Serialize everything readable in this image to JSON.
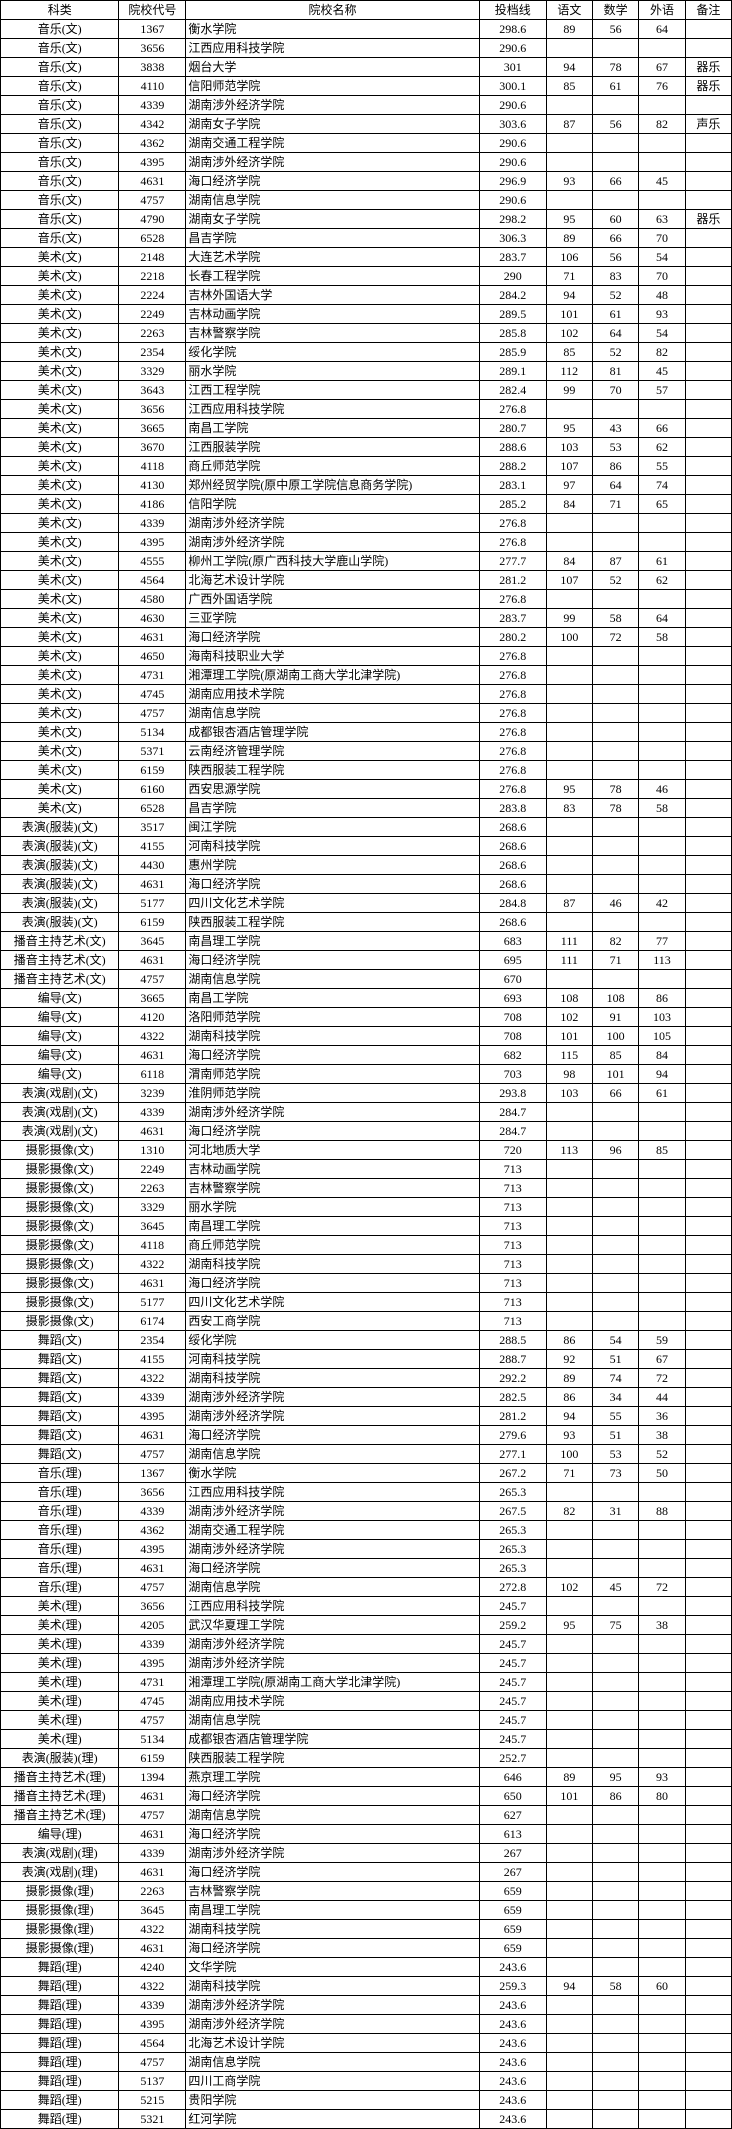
{
  "headers": {
    "category": "科类",
    "code": "院校代号",
    "name": "院校名称",
    "score": "投档线",
    "chinese": "语文",
    "math": "数学",
    "foreign": "外语",
    "note": "备注"
  },
  "rows": [
    {
      "cat": "音乐(文)",
      "code": "1367",
      "name": "衡水学院",
      "score": "298.6",
      "chn": "89",
      "math": "56",
      "fl": "64",
      "note": ""
    },
    {
      "cat": "音乐(文)",
      "code": "3656",
      "name": "江西应用科技学院",
      "score": "290.6",
      "chn": "",
      "math": "",
      "fl": "",
      "note": ""
    },
    {
      "cat": "音乐(文)",
      "code": "3838",
      "name": "烟台大学",
      "score": "301",
      "chn": "94",
      "math": "78",
      "fl": "67",
      "note": "器乐"
    },
    {
      "cat": "音乐(文)",
      "code": "4110",
      "name": "信阳师范学院",
      "score": "300.1",
      "chn": "85",
      "math": "61",
      "fl": "76",
      "note": "器乐"
    },
    {
      "cat": "音乐(文)",
      "code": "4339",
      "name": "湖南涉外经济学院",
      "score": "290.6",
      "chn": "",
      "math": "",
      "fl": "",
      "note": ""
    },
    {
      "cat": "音乐(文)",
      "code": "4342",
      "name": "湖南女子学院",
      "score": "303.6",
      "chn": "87",
      "math": "56",
      "fl": "82",
      "note": "声乐"
    },
    {
      "cat": "音乐(文)",
      "code": "4362",
      "name": "湖南交通工程学院",
      "score": "290.6",
      "chn": "",
      "math": "",
      "fl": "",
      "note": ""
    },
    {
      "cat": "音乐(文)",
      "code": "4395",
      "name": "湖南涉外经济学院",
      "score": "290.6",
      "chn": "",
      "math": "",
      "fl": "",
      "note": ""
    },
    {
      "cat": "音乐(文)",
      "code": "4631",
      "name": "海口经济学院",
      "score": "296.9",
      "chn": "93",
      "math": "66",
      "fl": "45",
      "note": ""
    },
    {
      "cat": "音乐(文)",
      "code": "4757",
      "name": "湖南信息学院",
      "score": "290.6",
      "chn": "",
      "math": "",
      "fl": "",
      "note": ""
    },
    {
      "cat": "音乐(文)",
      "code": "4790",
      "name": "湖南女子学院",
      "score": "298.2",
      "chn": "95",
      "math": "60",
      "fl": "63",
      "note": "器乐"
    },
    {
      "cat": "音乐(文)",
      "code": "6528",
      "name": "昌吉学院",
      "score": "306.3",
      "chn": "89",
      "math": "66",
      "fl": "70",
      "note": ""
    },
    {
      "cat": "美术(文)",
      "code": "2148",
      "name": "大连艺术学院",
      "score": "283.7",
      "chn": "106",
      "math": "56",
      "fl": "54",
      "note": ""
    },
    {
      "cat": "美术(文)",
      "code": "2218",
      "name": "长春工程学院",
      "score": "290",
      "chn": "71",
      "math": "83",
      "fl": "70",
      "note": ""
    },
    {
      "cat": "美术(文)",
      "code": "2224",
      "name": "吉林外国语大学",
      "score": "284.2",
      "chn": "94",
      "math": "52",
      "fl": "48",
      "note": ""
    },
    {
      "cat": "美术(文)",
      "code": "2249",
      "name": "吉林动画学院",
      "score": "289.5",
      "chn": "101",
      "math": "61",
      "fl": "93",
      "note": ""
    },
    {
      "cat": "美术(文)",
      "code": "2263",
      "name": "吉林警察学院",
      "score": "285.8",
      "chn": "102",
      "math": "64",
      "fl": "54",
      "note": ""
    },
    {
      "cat": "美术(文)",
      "code": "2354",
      "name": "绥化学院",
      "score": "285.9",
      "chn": "85",
      "math": "52",
      "fl": "82",
      "note": ""
    },
    {
      "cat": "美术(文)",
      "code": "3329",
      "name": "丽水学院",
      "score": "289.1",
      "chn": "112",
      "math": "81",
      "fl": "45",
      "note": ""
    },
    {
      "cat": "美术(文)",
      "code": "3643",
      "name": "江西工程学院",
      "score": "282.4",
      "chn": "99",
      "math": "70",
      "fl": "57",
      "note": ""
    },
    {
      "cat": "美术(文)",
      "code": "3656",
      "name": "江西应用科技学院",
      "score": "276.8",
      "chn": "",
      "math": "",
      "fl": "",
      "note": ""
    },
    {
      "cat": "美术(文)",
      "code": "3665",
      "name": "南昌工学院",
      "score": "280.7",
      "chn": "95",
      "math": "43",
      "fl": "66",
      "note": ""
    },
    {
      "cat": "美术(文)",
      "code": "3670",
      "name": "江西服装学院",
      "score": "288.6",
      "chn": "103",
      "math": "53",
      "fl": "62",
      "note": ""
    },
    {
      "cat": "美术(文)",
      "code": "4118",
      "name": "商丘师范学院",
      "score": "288.2",
      "chn": "107",
      "math": "86",
      "fl": "55",
      "note": ""
    },
    {
      "cat": "美术(文)",
      "code": "4130",
      "name": "郑州经贸学院(原中原工学院信息商务学院)",
      "score": "283.1",
      "chn": "97",
      "math": "64",
      "fl": "74",
      "note": ""
    },
    {
      "cat": "美术(文)",
      "code": "4186",
      "name": "信阳学院",
      "score": "285.2",
      "chn": "84",
      "math": "71",
      "fl": "65",
      "note": ""
    },
    {
      "cat": "美术(文)",
      "code": "4339",
      "name": "湖南涉外经济学院",
      "score": "276.8",
      "chn": "",
      "math": "",
      "fl": "",
      "note": ""
    },
    {
      "cat": "美术(文)",
      "code": "4395",
      "name": "湖南涉外经济学院",
      "score": "276.8",
      "chn": "",
      "math": "",
      "fl": "",
      "note": ""
    },
    {
      "cat": "美术(文)",
      "code": "4555",
      "name": "柳州工学院(原广西科技大学鹿山学院)",
      "score": "277.7",
      "chn": "84",
      "math": "87",
      "fl": "61",
      "note": ""
    },
    {
      "cat": "美术(文)",
      "code": "4564",
      "name": "北海艺术设计学院",
      "score": "281.2",
      "chn": "107",
      "math": "52",
      "fl": "62",
      "note": ""
    },
    {
      "cat": "美术(文)",
      "code": "4580",
      "name": "广西外国语学院",
      "score": "276.8",
      "chn": "",
      "math": "",
      "fl": "",
      "note": ""
    },
    {
      "cat": "美术(文)",
      "code": "4630",
      "name": "三亚学院",
      "score": "283.7",
      "chn": "99",
      "math": "58",
      "fl": "64",
      "note": ""
    },
    {
      "cat": "美术(文)",
      "code": "4631",
      "name": "海口经济学院",
      "score": "280.2",
      "chn": "100",
      "math": "72",
      "fl": "58",
      "note": ""
    },
    {
      "cat": "美术(文)",
      "code": "4650",
      "name": "海南科技职业大学",
      "score": "276.8",
      "chn": "",
      "math": "",
      "fl": "",
      "note": ""
    },
    {
      "cat": "美术(文)",
      "code": "4731",
      "name": "湘潭理工学院(原湖南工商大学北津学院)",
      "score": "276.8",
      "chn": "",
      "math": "",
      "fl": "",
      "note": ""
    },
    {
      "cat": "美术(文)",
      "code": "4745",
      "name": "湖南应用技术学院",
      "score": "276.8",
      "chn": "",
      "math": "",
      "fl": "",
      "note": ""
    },
    {
      "cat": "美术(文)",
      "code": "4757",
      "name": "湖南信息学院",
      "score": "276.8",
      "chn": "",
      "math": "",
      "fl": "",
      "note": ""
    },
    {
      "cat": "美术(文)",
      "code": "5134",
      "name": "成都银杏酒店管理学院",
      "score": "276.8",
      "chn": "",
      "math": "",
      "fl": "",
      "note": ""
    },
    {
      "cat": "美术(文)",
      "code": "5371",
      "name": "云南经济管理学院",
      "score": "276.8",
      "chn": "",
      "math": "",
      "fl": "",
      "note": ""
    },
    {
      "cat": "美术(文)",
      "code": "6159",
      "name": "陕西服装工程学院",
      "score": "276.8",
      "chn": "",
      "math": "",
      "fl": "",
      "note": ""
    },
    {
      "cat": "美术(文)",
      "code": "6160",
      "name": "西安思源学院",
      "score": "276.8",
      "chn": "95",
      "math": "78",
      "fl": "46",
      "note": ""
    },
    {
      "cat": "美术(文)",
      "code": "6528",
      "name": "昌吉学院",
      "score": "283.8",
      "chn": "83",
      "math": "78",
      "fl": "58",
      "note": ""
    },
    {
      "cat": "表演(服装)(文)",
      "code": "3517",
      "name": "闽江学院",
      "score": "268.6",
      "chn": "",
      "math": "",
      "fl": "",
      "note": ""
    },
    {
      "cat": "表演(服装)(文)",
      "code": "4155",
      "name": "河南科技学院",
      "score": "268.6",
      "chn": "",
      "math": "",
      "fl": "",
      "note": ""
    },
    {
      "cat": "表演(服装)(文)",
      "code": "4430",
      "name": "惠州学院",
      "score": "268.6",
      "chn": "",
      "math": "",
      "fl": "",
      "note": ""
    },
    {
      "cat": "表演(服装)(文)",
      "code": "4631",
      "name": "海口经济学院",
      "score": "268.6",
      "chn": "",
      "math": "",
      "fl": "",
      "note": ""
    },
    {
      "cat": "表演(服装)(文)",
      "code": "5177",
      "name": "四川文化艺术学院",
      "score": "284.8",
      "chn": "87",
      "math": "46",
      "fl": "42",
      "note": ""
    },
    {
      "cat": "表演(服装)(文)",
      "code": "6159",
      "name": "陕西服装工程学院",
      "score": "268.6",
      "chn": "",
      "math": "",
      "fl": "",
      "note": ""
    },
    {
      "cat": "播音主持艺术(文)",
      "code": "3645",
      "name": "南昌理工学院",
      "score": "683",
      "chn": "111",
      "math": "82",
      "fl": "77",
      "note": ""
    },
    {
      "cat": "播音主持艺术(文)",
      "code": "4631",
      "name": "海口经济学院",
      "score": "695",
      "chn": "111",
      "math": "71",
      "fl": "113",
      "note": ""
    },
    {
      "cat": "播音主持艺术(文)",
      "code": "4757",
      "name": "湖南信息学院",
      "score": "670",
      "chn": "",
      "math": "",
      "fl": "",
      "note": ""
    },
    {
      "cat": "编导(文)",
      "code": "3665",
      "name": "南昌工学院",
      "score": "693",
      "chn": "108",
      "math": "108",
      "fl": "86",
      "note": ""
    },
    {
      "cat": "编导(文)",
      "code": "4120",
      "name": "洛阳师范学院",
      "score": "708",
      "chn": "102",
      "math": "91",
      "fl": "103",
      "note": ""
    },
    {
      "cat": "编导(文)",
      "code": "4322",
      "name": "湖南科技学院",
      "score": "708",
      "chn": "101",
      "math": "100",
      "fl": "105",
      "note": ""
    },
    {
      "cat": "编导(文)",
      "code": "4631",
      "name": "海口经济学院",
      "score": "682",
      "chn": "115",
      "math": "85",
      "fl": "84",
      "note": ""
    },
    {
      "cat": "编导(文)",
      "code": "6118",
      "name": "渭南师范学院",
      "score": "703",
      "chn": "98",
      "math": "101",
      "fl": "94",
      "note": ""
    },
    {
      "cat": "表演(戏剧)(文)",
      "code": "3239",
      "name": "淮阴师范学院",
      "score": "293.8",
      "chn": "103",
      "math": "66",
      "fl": "61",
      "note": ""
    },
    {
      "cat": "表演(戏剧)(文)",
      "code": "4339",
      "name": "湖南涉外经济学院",
      "score": "284.7",
      "chn": "",
      "math": "",
      "fl": "",
      "note": ""
    },
    {
      "cat": "表演(戏剧)(文)",
      "code": "4631",
      "name": "海口经济学院",
      "score": "284.7",
      "chn": "",
      "math": "",
      "fl": "",
      "note": ""
    },
    {
      "cat": "摄影摄像(文)",
      "code": "1310",
      "name": "河北地质大学",
      "score": "720",
      "chn": "113",
      "math": "96",
      "fl": "85",
      "note": ""
    },
    {
      "cat": "摄影摄像(文)",
      "code": "2249",
      "name": "吉林动画学院",
      "score": "713",
      "chn": "",
      "math": "",
      "fl": "",
      "note": ""
    },
    {
      "cat": "摄影摄像(文)",
      "code": "2263",
      "name": "吉林警察学院",
      "score": "713",
      "chn": "",
      "math": "",
      "fl": "",
      "note": ""
    },
    {
      "cat": "摄影摄像(文)",
      "code": "3329",
      "name": "丽水学院",
      "score": "713",
      "chn": "",
      "math": "",
      "fl": "",
      "note": ""
    },
    {
      "cat": "摄影摄像(文)",
      "code": "3645",
      "name": "南昌理工学院",
      "score": "713",
      "chn": "",
      "math": "",
      "fl": "",
      "note": ""
    },
    {
      "cat": "摄影摄像(文)",
      "code": "4118",
      "name": "商丘师范学院",
      "score": "713",
      "chn": "",
      "math": "",
      "fl": "",
      "note": ""
    },
    {
      "cat": "摄影摄像(文)",
      "code": "4322",
      "name": "湖南科技学院",
      "score": "713",
      "chn": "",
      "math": "",
      "fl": "",
      "note": ""
    },
    {
      "cat": "摄影摄像(文)",
      "code": "4631",
      "name": "海口经济学院",
      "score": "713",
      "chn": "",
      "math": "",
      "fl": "",
      "note": ""
    },
    {
      "cat": "摄影摄像(文)",
      "code": "5177",
      "name": "四川文化艺术学院",
      "score": "713",
      "chn": "",
      "math": "",
      "fl": "",
      "note": ""
    },
    {
      "cat": "摄影摄像(文)",
      "code": "6174",
      "name": "西安工商学院",
      "score": "713",
      "chn": "",
      "math": "",
      "fl": "",
      "note": ""
    },
    {
      "cat": "舞蹈(文)",
      "code": "2354",
      "name": "绥化学院",
      "score": "288.5",
      "chn": "86",
      "math": "54",
      "fl": "59",
      "note": ""
    },
    {
      "cat": "舞蹈(文)",
      "code": "4155",
      "name": "河南科技学院",
      "score": "288.7",
      "chn": "92",
      "math": "51",
      "fl": "67",
      "note": ""
    },
    {
      "cat": "舞蹈(文)",
      "code": "4322",
      "name": "湖南科技学院",
      "score": "292.2",
      "chn": "89",
      "math": "74",
      "fl": "72",
      "note": ""
    },
    {
      "cat": "舞蹈(文)",
      "code": "4339",
      "name": "湖南涉外经济学院",
      "score": "282.5",
      "chn": "86",
      "math": "34",
      "fl": "44",
      "note": ""
    },
    {
      "cat": "舞蹈(文)",
      "code": "4395",
      "name": "湖南涉外经济学院",
      "score": "281.2",
      "chn": "94",
      "math": "55",
      "fl": "36",
      "note": ""
    },
    {
      "cat": "舞蹈(文)",
      "code": "4631",
      "name": "海口经济学院",
      "score": "279.6",
      "chn": "93",
      "math": "51",
      "fl": "38",
      "note": ""
    },
    {
      "cat": "舞蹈(文)",
      "code": "4757",
      "name": "湖南信息学院",
      "score": "277.1",
      "chn": "100",
      "math": "53",
      "fl": "52",
      "note": ""
    },
    {
      "cat": "音乐(理)",
      "code": "1367",
      "name": "衡水学院",
      "score": "267.2",
      "chn": "71",
      "math": "73",
      "fl": "50",
      "note": ""
    },
    {
      "cat": "音乐(理)",
      "code": "3656",
      "name": "江西应用科技学院",
      "score": "265.3",
      "chn": "",
      "math": "",
      "fl": "",
      "note": ""
    },
    {
      "cat": "音乐(理)",
      "code": "4339",
      "name": "湖南涉外经济学院",
      "score": "267.5",
      "chn": "82",
      "math": "31",
      "fl": "88",
      "note": ""
    },
    {
      "cat": "音乐(理)",
      "code": "4362",
      "name": "湖南交通工程学院",
      "score": "265.3",
      "chn": "",
      "math": "",
      "fl": "",
      "note": ""
    },
    {
      "cat": "音乐(理)",
      "code": "4395",
      "name": "湖南涉外经济学院",
      "score": "265.3",
      "chn": "",
      "math": "",
      "fl": "",
      "note": ""
    },
    {
      "cat": "音乐(理)",
      "code": "4631",
      "name": "海口经济学院",
      "score": "265.3",
      "chn": "",
      "math": "",
      "fl": "",
      "note": ""
    },
    {
      "cat": "音乐(理)",
      "code": "4757",
      "name": "湖南信息学院",
      "score": "272.8",
      "chn": "102",
      "math": "45",
      "fl": "72",
      "note": ""
    },
    {
      "cat": "美术(理)",
      "code": "3656",
      "name": "江西应用科技学院",
      "score": "245.7",
      "chn": "",
      "math": "",
      "fl": "",
      "note": ""
    },
    {
      "cat": "美术(理)",
      "code": "4205",
      "name": "武汉华夏理工学院",
      "score": "259.2",
      "chn": "95",
      "math": "75",
      "fl": "38",
      "note": ""
    },
    {
      "cat": "美术(理)",
      "code": "4339",
      "name": "湖南涉外经济学院",
      "score": "245.7",
      "chn": "",
      "math": "",
      "fl": "",
      "note": ""
    },
    {
      "cat": "美术(理)",
      "code": "4395",
      "name": "湖南涉外经济学院",
      "score": "245.7",
      "chn": "",
      "math": "",
      "fl": "",
      "note": ""
    },
    {
      "cat": "美术(理)",
      "code": "4731",
      "name": "湘潭理工学院(原湖南工商大学北津学院)",
      "score": "245.7",
      "chn": "",
      "math": "",
      "fl": "",
      "note": ""
    },
    {
      "cat": "美术(理)",
      "code": "4745",
      "name": "湖南应用技术学院",
      "score": "245.7",
      "chn": "",
      "math": "",
      "fl": "",
      "note": ""
    },
    {
      "cat": "美术(理)",
      "code": "4757",
      "name": "湖南信息学院",
      "score": "245.7",
      "chn": "",
      "math": "",
      "fl": "",
      "note": ""
    },
    {
      "cat": "美术(理)",
      "code": "5134",
      "name": "成都银杏酒店管理学院",
      "score": "245.7",
      "chn": "",
      "math": "",
      "fl": "",
      "note": ""
    },
    {
      "cat": "表演(服装)(理)",
      "code": "6159",
      "name": "陕西服装工程学院",
      "score": "252.7",
      "chn": "",
      "math": "",
      "fl": "",
      "note": ""
    },
    {
      "cat": "播音主持艺术(理)",
      "code": "1394",
      "name": "燕京理工学院",
      "score": "646",
      "chn": "89",
      "math": "95",
      "fl": "93",
      "note": ""
    },
    {
      "cat": "播音主持艺术(理)",
      "code": "4631",
      "name": "海口经济学院",
      "score": "650",
      "chn": "101",
      "math": "86",
      "fl": "80",
      "note": ""
    },
    {
      "cat": "播音主持艺术(理)",
      "code": "4757",
      "name": "湖南信息学院",
      "score": "627",
      "chn": "",
      "math": "",
      "fl": "",
      "note": ""
    },
    {
      "cat": "编导(理)",
      "code": "4631",
      "name": "海口经济学院",
      "score": "613",
      "chn": "",
      "math": "",
      "fl": "",
      "note": ""
    },
    {
      "cat": "表演(戏剧)(理)",
      "code": "4339",
      "name": "湖南涉外经济学院",
      "score": "267",
      "chn": "",
      "math": "",
      "fl": "",
      "note": ""
    },
    {
      "cat": "表演(戏剧)(理)",
      "code": "4631",
      "name": "海口经济学院",
      "score": "267",
      "chn": "",
      "math": "",
      "fl": "",
      "note": ""
    },
    {
      "cat": "摄影摄像(理)",
      "code": "2263",
      "name": "吉林警察学院",
      "score": "659",
      "chn": "",
      "math": "",
      "fl": "",
      "note": ""
    },
    {
      "cat": "摄影摄像(理)",
      "code": "3645",
      "name": "南昌理工学院",
      "score": "659",
      "chn": "",
      "math": "",
      "fl": "",
      "note": ""
    },
    {
      "cat": "摄影摄像(理)",
      "code": "4322",
      "name": "湖南科技学院",
      "score": "659",
      "chn": "",
      "math": "",
      "fl": "",
      "note": ""
    },
    {
      "cat": "摄影摄像(理)",
      "code": "4631",
      "name": "海口经济学院",
      "score": "659",
      "chn": "",
      "math": "",
      "fl": "",
      "note": ""
    },
    {
      "cat": "舞蹈(理)",
      "code": "4240",
      "name": "文华学院",
      "score": "243.6",
      "chn": "",
      "math": "",
      "fl": "",
      "note": ""
    },
    {
      "cat": "舞蹈(理)",
      "code": "4322",
      "name": "湖南科技学院",
      "score": "259.3",
      "chn": "94",
      "math": "58",
      "fl": "60",
      "note": ""
    },
    {
      "cat": "舞蹈(理)",
      "code": "4339",
      "name": "湖南涉外经济学院",
      "score": "243.6",
      "chn": "",
      "math": "",
      "fl": "",
      "note": ""
    },
    {
      "cat": "舞蹈(理)",
      "code": "4395",
      "name": "湖南涉外经济学院",
      "score": "243.6",
      "chn": "",
      "math": "",
      "fl": "",
      "note": ""
    },
    {
      "cat": "舞蹈(理)",
      "code": "4564",
      "name": "北海艺术设计学院",
      "score": "243.6",
      "chn": "",
      "math": "",
      "fl": "",
      "note": ""
    },
    {
      "cat": "舞蹈(理)",
      "code": "4757",
      "name": "湖南信息学院",
      "score": "243.6",
      "chn": "",
      "math": "",
      "fl": "",
      "note": ""
    },
    {
      "cat": "舞蹈(理)",
      "code": "5137",
      "name": "四川工商学院",
      "score": "243.6",
      "chn": "",
      "math": "",
      "fl": "",
      "note": ""
    },
    {
      "cat": "舞蹈(理)",
      "code": "5215",
      "name": "贵阳学院",
      "score": "243.6",
      "chn": "",
      "math": "",
      "fl": "",
      "note": ""
    },
    {
      "cat": "舞蹈(理)",
      "code": "5321",
      "name": "红河学院",
      "score": "243.6",
      "chn": "",
      "math": "",
      "fl": "",
      "note": ""
    }
  ]
}
